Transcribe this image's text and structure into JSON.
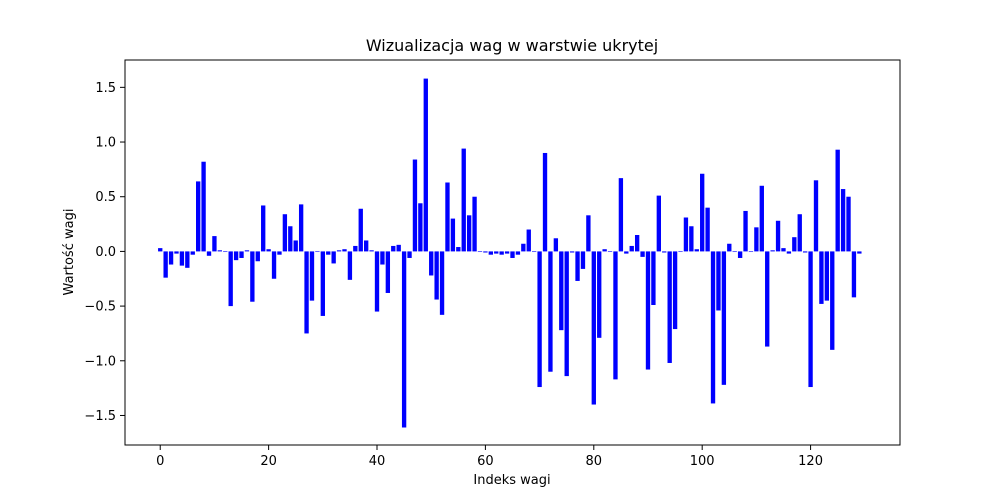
{
  "chart_data": {
    "type": "bar",
    "title": "Wizualizacja wag w warstwie ukrytej",
    "xlabel": "Indeks wagi",
    "ylabel": "Wartość wagi",
    "bar_color": "#0000ff",
    "grid": false,
    "xlim": [
      -6.5,
      136.5
    ],
    "ylim": [
      -1.77,
      1.75
    ],
    "xticks": [
      0,
      20,
      40,
      60,
      80,
      100,
      120
    ],
    "yticks": [
      -1.5,
      -1.0,
      -0.5,
      0.0,
      0.5,
      1.0,
      1.5
    ],
    "xtick_labels": [
      "0",
      "20",
      "40",
      "60",
      "80",
      "100",
      "120"
    ],
    "ytick_labels": [
      "−1.5",
      "−1.0",
      "−0.5",
      "0.0",
      "0.5",
      "1.0",
      "1.5"
    ],
    "x": [
      0,
      1,
      2,
      3,
      4,
      5,
      6,
      7,
      8,
      9,
      10,
      11,
      12,
      13,
      14,
      15,
      16,
      17,
      18,
      19,
      20,
      21,
      22,
      23,
      24,
      25,
      26,
      27,
      28,
      29,
      30,
      31,
      32,
      33,
      34,
      35,
      36,
      37,
      38,
      39,
      40,
      41,
      42,
      43,
      44,
      45,
      46,
      47,
      48,
      49,
      50,
      51,
      52,
      53,
      54,
      55,
      56,
      57,
      58,
      59,
      60,
      61,
      62,
      63,
      64,
      65,
      66,
      67,
      68,
      69,
      70,
      71,
      72,
      73,
      74,
      75,
      76,
      77,
      78,
      79,
      80,
      81,
      82,
      83,
      84,
      85,
      86,
      87,
      88,
      89,
      90,
      91,
      92,
      93,
      94,
      95,
      96,
      97,
      98,
      99,
      100,
      101,
      102,
      103,
      104,
      105,
      106,
      107,
      108,
      109,
      110,
      111,
      112,
      113,
      114,
      115,
      116,
      117,
      118,
      119,
      120,
      121,
      122,
      123,
      124,
      125,
      126,
      127,
      128,
      129
    ],
    "values": [
      0.03,
      -0.24,
      -0.12,
      -0.02,
      -0.13,
      -0.15,
      -0.03,
      0.64,
      0.82,
      -0.04,
      0.14,
      0.01,
      0.0,
      -0.5,
      -0.08,
      -0.06,
      0.01,
      -0.46,
      -0.09,
      0.42,
      0.02,
      -0.25,
      -0.03,
      0.34,
      0.23,
      0.1,
      0.43,
      -0.75,
      -0.45,
      0.0,
      -0.59,
      -0.03,
      -0.11,
      0.01,
      0.02,
      -0.26,
      0.05,
      0.39,
      0.1,
      0.01,
      -0.55,
      -0.12,
      -0.38,
      0.05,
      0.06,
      -1.61,
      -0.06,
      0.84,
      0.44,
      1.58,
      -0.22,
      -0.44,
      -0.58,
      0.63,
      0.3,
      0.04,
      0.94,
      0.33,
      0.5,
      0.0,
      -0.01,
      -0.03,
      -0.02,
      -0.03,
      -0.02,
      -0.06,
      -0.03,
      0.07,
      0.2,
      0.0,
      -1.24,
      0.9,
      -1.1,
      0.12,
      -0.72,
      -1.14,
      -0.01,
      -0.27,
      -0.16,
      0.33,
      -1.4,
      -0.79,
      0.02,
      0.0,
      -1.17,
      0.67,
      -0.02,
      0.05,
      0.15,
      -0.05,
      -1.08,
      -0.49,
      0.51,
      -0.01,
      -1.02,
      -0.71,
      0.0,
      0.31,
      0.23,
      0.02,
      0.71,
      0.4,
      -1.39,
      -0.54,
      -1.22,
      0.07,
      0.0,
      -0.06,
      0.37,
      0.0,
      0.22,
      0.6,
      -0.87,
      0.01,
      0.28,
      0.03,
      -0.02,
      0.13,
      0.34,
      -0.01,
      -1.24,
      0.65,
      -0.48,
      -0.45,
      -0.9,
      0.93,
      0.57,
      0.5,
      -0.42,
      -0.02
    ]
  }
}
